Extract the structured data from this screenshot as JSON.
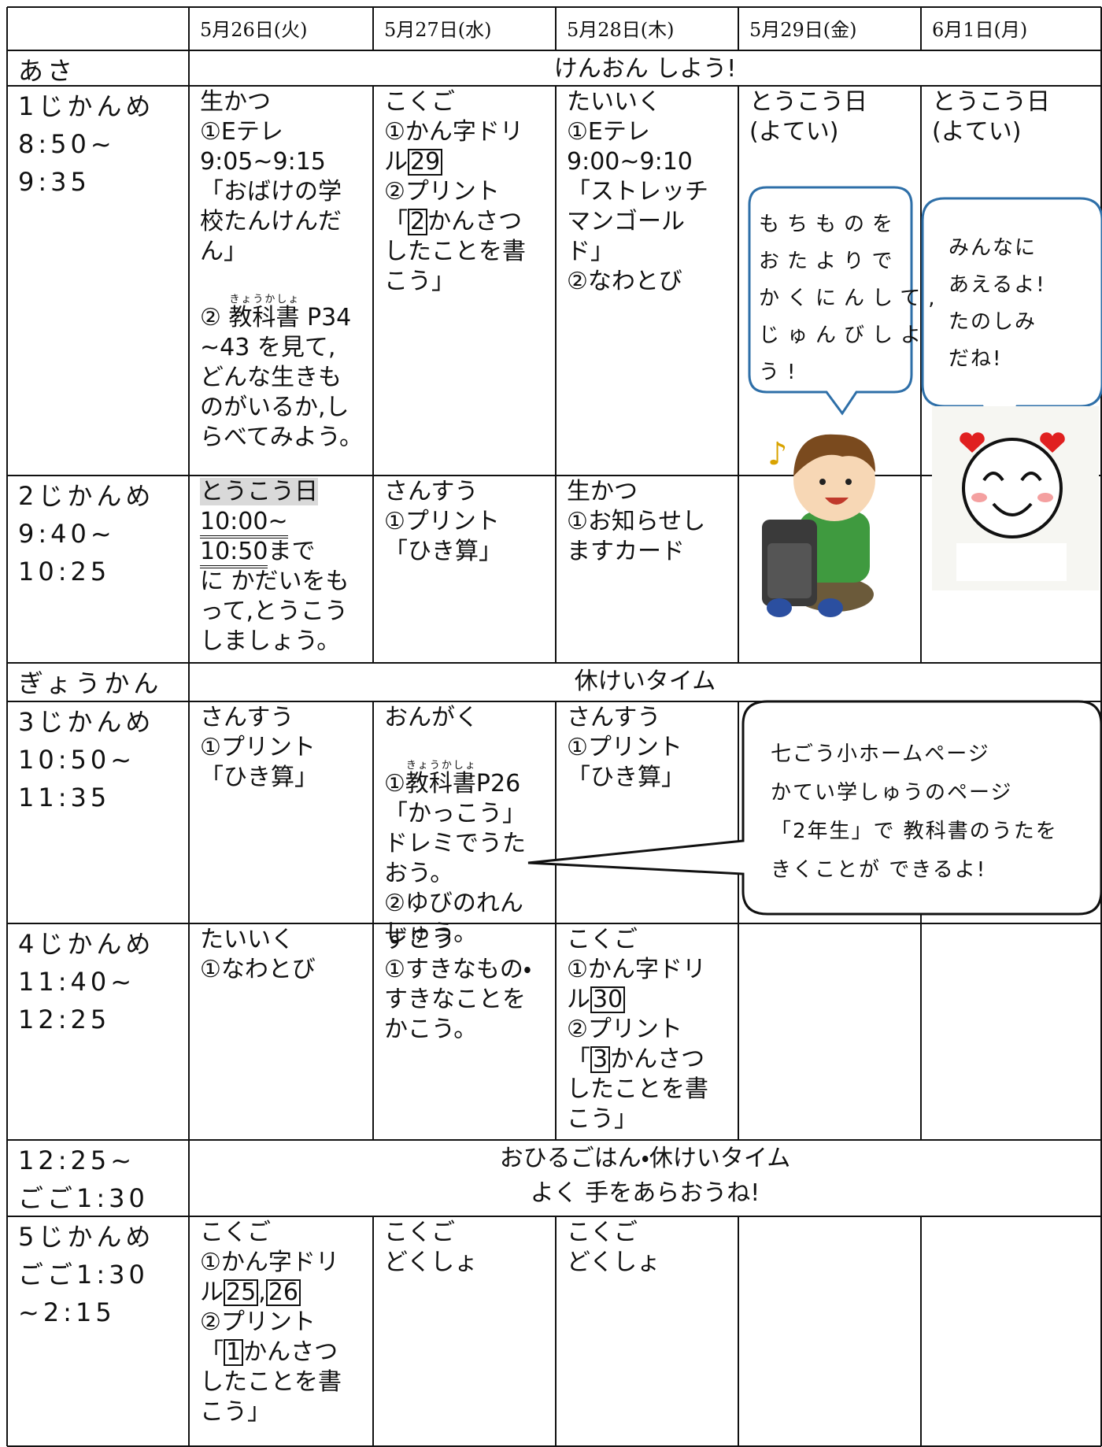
{
  "header": {
    "columns": [
      "5月26日(火)",
      "5月27日(水)",
      "5月28日(木)",
      "5月29日(金)",
      "6月1日(月)"
    ]
  },
  "rows": [
    {
      "label": [
        "あさ"
      ],
      "span": [
        "けんおん しよう!"
      ]
    },
    {
      "label": [
        "1じかんめ",
        "8:50~",
        "9:35"
      ],
      "cells": [
        [
          "生かつ",
          "①Eテレ",
          "9:05~9:15",
          "「おばけの学",
          "校たんけんだ",
          "ん」",
          [
            "② ",
            {
              "ruby": "教科書",
              "rt": "きょうかしょ"
            },
            " P34"
          ],
          "~43 を見て,",
          "どんな生きも",
          "のがいるか,し",
          "らべてみよう。"
        ],
        [
          "こくご",
          "①かん字ドリ",
          [
            "ル",
            {
              "boxed": "29"
            }
          ],
          [
            "②プリント"
          ],
          [
            "「",
            {
              "boxed": "2"
            },
            "かんさつ"
          ],
          "したことを書",
          "こう」"
        ],
        [
          "たいいく",
          "①Eテレ",
          "9:00~9:10",
          "「ストレッチ",
          "マンゴール",
          "ド」",
          [
            "②なわとび"
          ]
        ],
        [
          "とうこう日",
          "(よてい)"
        ],
        [
          "とうこう日",
          "(よてい)"
        ]
      ]
    },
    {
      "label": [
        "2じかんめ",
        "9:40~",
        "10:25"
      ],
      "cells": [
        [
          [
            {
              "mark": "とうこう日"
            }
          ],
          [
            {
              "underline": "10:00~"
            }
          ],
          [
            {
              "underline": "10:50"
            },
            "まで"
          ],
          "に かだいをも",
          "って,とうこう",
          "しましょう。"
        ],
        [
          "さんすう",
          "①プリント",
          "「ひき算」"
        ],
        [
          "生かつ",
          "①お知らせし",
          "ますカード"
        ],
        [],
        []
      ]
    },
    {
      "label": [
        "ぎょうかん"
      ],
      "span": [
        "休けいタイム"
      ]
    },
    {
      "label": [
        "3じかんめ",
        "10:50~",
        "11:35"
      ],
      "cells": [
        [
          "さんすう",
          "①プリント",
          "「ひき算」"
        ],
        [
          "おんがく",
          [
            "①",
            {
              "ruby": "教科書",
              "rt": "きょうかしょ"
            },
            "P26"
          ],
          "「かっこう」",
          "ドレミでうた",
          "おう。",
          "②ゆびのれん",
          "しゅう。"
        ],
        [
          "さんすう",
          "①プリント",
          "「ひき算」"
        ],
        [],
        []
      ]
    },
    {
      "label": [
        "4じかんめ",
        "11:40~",
        "12:25"
      ],
      "cells": [
        [
          "たいいく",
          "①なわとび"
        ],
        [
          "ずこう",
          "①すきなもの・",
          "すきなことを",
          "かこう。"
        ],
        [
          "こくご",
          "①かん字ドリ",
          [
            "ル",
            {
              "boxed": "30"
            }
          ],
          "②プリント",
          [
            "「",
            {
              "boxed": "3"
            },
            "かんさつ"
          ],
          "したことを書",
          "こう」"
        ],
        [],
        []
      ]
    },
    {
      "label": [
        "12:25~",
        "ごご1:30"
      ],
      "span": [
        "おひるごはん・休けいタイム",
        "よく 手をあらおうね!"
      ]
    },
    {
      "label": [
        "5じかんめ",
        "ごご1:30",
        "~2:15"
      ],
      "cells": [
        [
          "こくご",
          "①かん字ドリ",
          [
            "ル",
            {
              "boxed": "25"
            },
            ",",
            {
              "boxed": "26"
            }
          ],
          "②プリント",
          [
            "「",
            {
              "boxed": "1"
            },
            "かんさつ"
          ],
          "したことを書",
          "こう」"
        ],
        [
          "こくご",
          "どくしょ"
        ],
        [
          "こくご",
          "どくしょ"
        ],
        [],
        []
      ]
    }
  ],
  "callouts": [
    {
      "lines": [
        "もちものを",
        "おたよりで",
        "かくにんして,",
        "じゅんびしよ",
        "う!"
      ]
    },
    {
      "lines": [
        "みんなに",
        "あえるよ!",
        "たのしみ",
        "だね!"
      ]
    },
    {
      "lines": [
        "七ごう小ホームページ",
        "かてい学しゅうのページ",
        "「2年生」で 教科書のうたを",
        "きくことが できるよ!"
      ]
    }
  ]
}
